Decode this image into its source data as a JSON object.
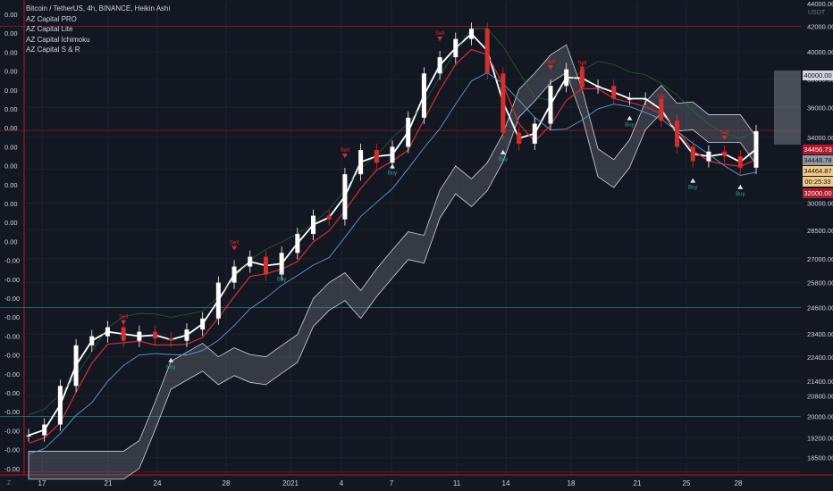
{
  "legend": {
    "title": "Bitcoin / TetherUS, 4h, BINANCE, Heikin Ashi",
    "indicators": [
      "AZ Capital PRO",
      "AZ Capital Lite",
      "AZ Capital Ichimoku",
      "AZ Capital S & R"
    ]
  },
  "currency_label": "USDT",
  "left_scale_labels": [
    "0.00",
    "0.00",
    "0.00",
    "0.00",
    "0.00",
    "0.00",
    "0.00",
    "0.00",
    "0.00",
    "0.00",
    "0.00",
    "0.00",
    "0.00",
    "-0.00",
    "-0.00",
    "-0.00",
    "-0.00",
    "-0.00",
    "-0.00",
    "-0.00",
    "-0.00",
    "-0.00",
    "-0.00",
    "-0.00",
    "-0.00"
  ],
  "price_tags": [
    {
      "text": "40000.00",
      "bg": "#d1d4dc",
      "fg": "#131722"
    },
    {
      "text": "34456.73",
      "bg": "#b2182b",
      "fg": "#ffffff"
    },
    {
      "text": "34448.78",
      "bg": "#9598a1",
      "fg": "#131722"
    },
    {
      "text": "34464.87",
      "bg": "#f0c987",
      "fg": "#131722"
    },
    {
      "text": "00:25:33",
      "bg": "#f0c987",
      "fg": "#131722"
    },
    {
      "text": "32000.00",
      "bg": "#b2182b",
      "fg": "#ffffff"
    }
  ],
  "corner_left": "Z",
  "corner_right": "",
  "signal_labels": {
    "sell": "Sell",
    "buy": "Buy"
  },
  "colors": {
    "background": "#131722",
    "grid": "#1e222d",
    "bull": "#ffffff",
    "bear": "#d32f2f",
    "cloud": "#787b86",
    "level_red": "#b2182b",
    "level_green": "#26a69a"
  },
  "chart_data": {
    "type": "line",
    "title": "Bitcoin / TetherUS, 4h, BINANCE, Heikin Ashi",
    "xlabel": "",
    "ylabel": "",
    "x_ticks": [
      "17",
      "21",
      "24",
      "28",
      "2021",
      "4",
      "7",
      "11",
      "14",
      "18",
      "21",
      "25",
      "28"
    ],
    "y_scale": "log",
    "y_ticks": [
      42000,
      40000,
      38000,
      36000,
      34000,
      32000,
      30000,
      28500,
      27000,
      25800,
      24600,
      23400,
      22400,
      21400,
      20800,
      20000,
      19200,
      18500
    ],
    "y_top_label": "44000.00",
    "ylim": [
      17900,
      44000
    ],
    "levels": [
      42000,
      34456.73,
      24600,
      20000,
      18000
    ],
    "series": [
      {
        "values": [
          19300,
          19700,
          21200,
          22900,
          23300,
          23700,
          23100,
          23500,
          23200,
          23100,
          23600,
          24100,
          25800,
          26600,
          27100,
          26200,
          27300,
          28300,
          29300,
          29100,
          31700,
          33200,
          32400,
          33400,
          35300,
          38400,
          39600,
          41000,
          41800,
          38400,
          34300,
          33600,
          34900,
          37500,
          38700,
          37400,
          37500,
          36600,
          36600,
          36600,
          35100,
          33400,
          32500,
          33100,
          32800,
          32100,
          34400
        ]
      }
    ]
  }
}
